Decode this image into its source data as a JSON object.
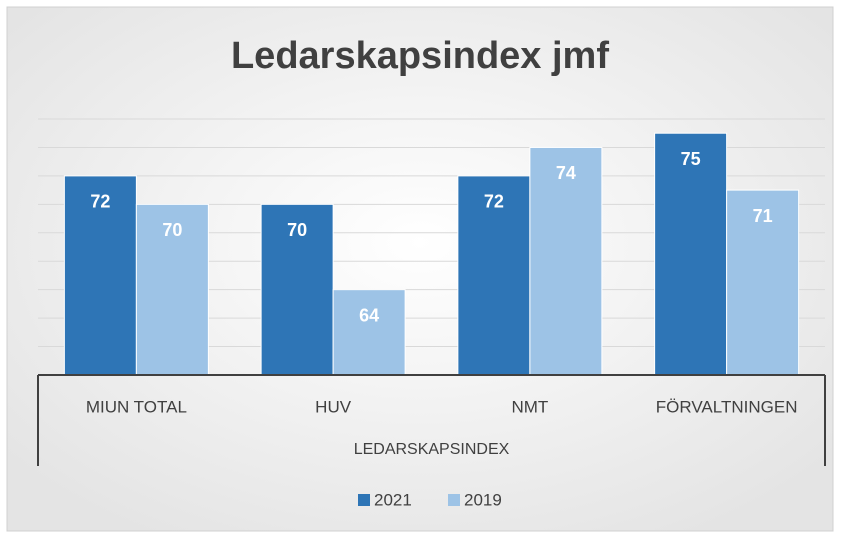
{
  "chart_data": {
    "type": "bar",
    "title": "Ledarskapsindex jmf",
    "categories": [
      "MIUN TOTAL",
      "HUV",
      "NMT",
      "FÖRVALTNINGEN"
    ],
    "group_label": "LEDARSKAPSINDEX",
    "series": [
      {
        "name": "2021",
        "color": "#2e75b6",
        "values": [
          72,
          70,
          72,
          75
        ]
      },
      {
        "name": "2019",
        "color": "#9dc3e6",
        "values": [
          70,
          64,
          74,
          71
        ]
      }
    ],
    "ylim": [
      58,
      76
    ],
    "yticks": [
      58,
      60,
      62,
      64,
      66,
      68,
      70,
      72,
      74,
      76
    ],
    "grid": true,
    "legend": "bottom"
  }
}
